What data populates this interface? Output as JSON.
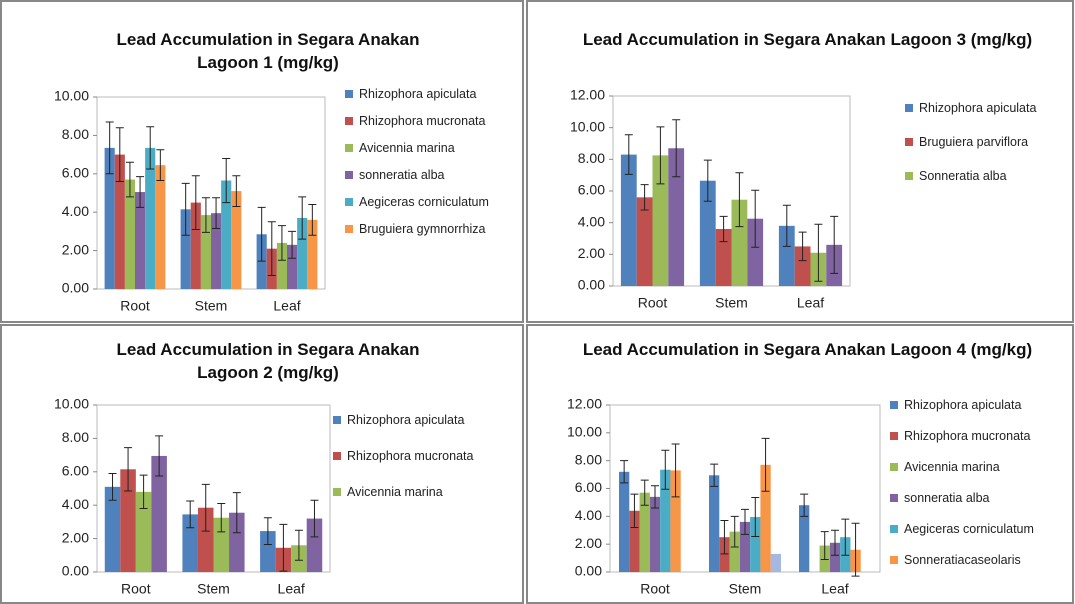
{
  "chart_data": [
    {
      "type": "bar",
      "title": "Lead Accumulation in Segara Anakan Lagoon 1 (mg/kg)",
      "categories": [
        "Root",
        "Stem",
        "Leaf"
      ],
      "ylim": [
        0,
        10
      ],
      "yticks": [
        {
          "value": 0,
          "label": "0.00"
        },
        {
          "value": 2,
          "label": "2.00"
        },
        {
          "value": 4,
          "label": "4.00"
        },
        {
          "value": 6,
          "label": "6.00"
        },
        {
          "value": 8,
          "label": "8.00"
        },
        {
          "value": 10,
          "label": "10.00"
        }
      ],
      "series": [
        {
          "name": "Rhizophora apiculata",
          "color": "#4f81bd",
          "values": [
            7.35,
            4.15,
            2.85
          ],
          "errors": [
            1.35,
            1.35,
            1.4
          ]
        },
        {
          "name": "Rhizophora mucronata",
          "color": "#c0504d",
          "values": [
            7.0,
            4.5,
            2.1
          ],
          "errors": [
            1.4,
            1.4,
            1.4
          ]
        },
        {
          "name": "Avicennia marina",
          "color": "#9bbb59",
          "values": [
            5.7,
            3.85,
            2.4
          ],
          "errors": [
            0.9,
            0.9,
            0.9
          ]
        },
        {
          "name": "sonneratia alba",
          "color": "#8064a2",
          "values": [
            5.05,
            3.95,
            2.3
          ],
          "errors": [
            0.8,
            0.8,
            0.7
          ]
        },
        {
          "name": "Aegiceras corniculatum",
          "color": "#4bacc6",
          "values": [
            7.35,
            5.65,
            3.7
          ],
          "errors": [
            1.1,
            1.15,
            1.1
          ]
        },
        {
          "name": "Bruguiera gymnorrhiza",
          "color": "#f79646",
          "values": [
            6.45,
            5.1,
            3.6
          ],
          "errors": [
            0.8,
            0.8,
            0.8
          ]
        }
      ]
    },
    {
      "type": "bar",
      "title": "Lead Accumulation in Segara Anakan Lagoon 3 (mg/kg)",
      "categories": [
        "Root",
        "Stem",
        "Leaf"
      ],
      "ylim": [
        0,
        12
      ],
      "yticks": [
        {
          "value": 0,
          "label": "0.00"
        },
        {
          "value": 2,
          "label": "2.00"
        },
        {
          "value": 4,
          "label": "4.00"
        },
        {
          "value": 6,
          "label": "6.00"
        },
        {
          "value": 8,
          "label": "8.00"
        },
        {
          "value": 10,
          "label": "10.00"
        },
        {
          "value": 12,
          "label": "12.00"
        }
      ],
      "series": [
        {
          "name": "Rhizophora apiculata",
          "color": "#4f81bd",
          "values": [
            8.3,
            6.65,
            3.8
          ],
          "errors": [
            1.25,
            1.3,
            1.3
          ]
        },
        {
          "name": "Bruguiera parviflora",
          "color": "#c0504d",
          "values": [
            5.6,
            3.6,
            2.5
          ],
          "errors": [
            0.8,
            0.8,
            0.9
          ]
        },
        {
          "name": "Sonneratia alba",
          "color": "#9bbb59",
          "values": [
            8.25,
            5.45,
            2.1
          ],
          "errors": [
            1.8,
            1.7,
            1.8
          ]
        },
        {
          "color": "#8064a2",
          "values": [
            8.7,
            4.25,
            2.6
          ],
          "errors": [
            1.8,
            1.8,
            1.8
          ]
        }
      ]
    },
    {
      "type": "bar",
      "title": "Lead Accumulation in Segara Anakan Lagoon 2 (mg/kg)",
      "categories": [
        "Root",
        "Stem",
        "Leaf"
      ],
      "ylim": [
        0,
        10
      ],
      "yticks": [
        {
          "value": 0,
          "label": "0.00"
        },
        {
          "value": 2,
          "label": "2.00"
        },
        {
          "value": 4,
          "label": "4.00"
        },
        {
          "value": 6,
          "label": "6.00"
        },
        {
          "value": 8,
          "label": "8.00"
        },
        {
          "value": 10,
          "label": "10.00"
        }
      ],
      "series": [
        {
          "name": "Rhizophora apiculata",
          "color": "#4f81bd",
          "values": [
            5.1,
            3.45,
            2.45
          ],
          "errors": [
            0.8,
            0.8,
            0.8
          ]
        },
        {
          "name": "Rhizophora mucronata",
          "color": "#c0504d",
          "values": [
            6.15,
            3.85,
            1.45
          ],
          "errors": [
            1.3,
            1.4,
            1.4
          ]
        },
        {
          "name": "Avicennia marina",
          "color": "#9bbb59",
          "values": [
            4.8,
            3.25,
            1.6
          ],
          "errors": [
            1.0,
            0.85,
            0.9
          ]
        },
        {
          "color": "#8064a2",
          "values": [
            6.95,
            3.55,
            3.2
          ],
          "errors": [
            1.2,
            1.2,
            1.1
          ]
        }
      ]
    },
    {
      "type": "bar",
      "title": "Lead Accumulation in Segara Anakan Lagoon 4 (mg/kg)",
      "categories": [
        "Root",
        "Stem",
        "Leaf"
      ],
      "ylim": [
        0,
        12
      ],
      "yticks": [
        {
          "value": 0,
          "label": "0.00"
        },
        {
          "value": 2,
          "label": "2.00"
        },
        {
          "value": 4,
          "label": "4.00"
        },
        {
          "value": 6,
          "label": "6.00"
        },
        {
          "value": 8,
          "label": "8.00"
        },
        {
          "value": 10,
          "label": "10.00"
        },
        {
          "value": 12,
          "label": "12.00"
        }
      ],
      "series": [
        {
          "name": "Rhizophora apiculata",
          "color": "#4f81bd",
          "values": [
            7.2,
            6.95,
            4.8
          ],
          "errors": [
            0.8,
            0.8,
            0.8
          ]
        },
        {
          "name": "Rhizophora mucronata",
          "color": "#c0504d",
          "values": [
            4.4,
            2.5,
            null
          ],
          "errors": [
            1.2,
            1.2,
            null
          ]
        },
        {
          "name": "Avicennia marina",
          "color": "#9bbb59",
          "values": [
            5.7,
            2.9,
            1.9
          ],
          "errors": [
            0.9,
            1.1,
            1.0
          ]
        },
        {
          "name": "sonneratia alba",
          "color": "#8064a2",
          "values": [
            5.4,
            3.6,
            2.1
          ],
          "errors": [
            0.8,
            0.9,
            0.9
          ]
        },
        {
          "name": "Aegiceras corniculatum",
          "color": "#4bacc6",
          "values": [
            7.35,
            3.95,
            2.5
          ],
          "errors": [
            1.4,
            1.4,
            1.3
          ]
        },
        {
          "name": "Sonneratiacaseolaris",
          "color": "#f79646",
          "values": [
            7.3,
            7.7,
            1.6
          ],
          "errors": [
            1.9,
            1.9,
            1.9
          ]
        },
        {
          "color": "#a5b8e0",
          "values": [
            null,
            1.3,
            null
          ],
          "errors": [
            null,
            null,
            null
          ]
        }
      ]
    }
  ]
}
